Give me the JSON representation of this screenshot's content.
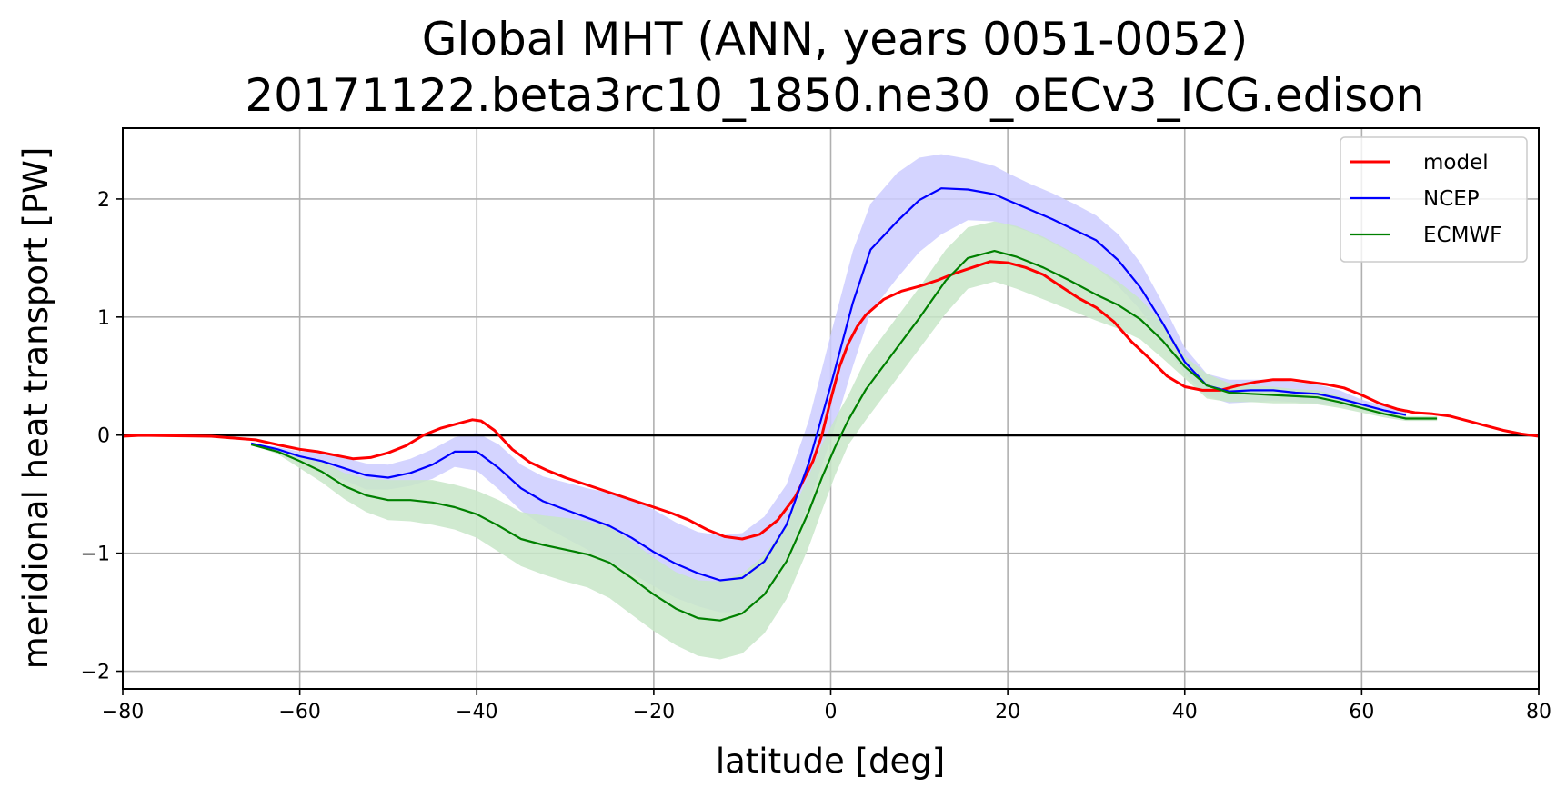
{
  "chart_data": {
    "type": "line",
    "title": "Global MHT (ANN, years 0051-0052)",
    "subtitle": "20171122.beta3rc10_1850.ne30_oECv3_ICG.edison",
    "xlabel": "latitude [deg]",
    "ylabel": "meridional heat transport [PW]",
    "xlim": [
      -80,
      80
    ],
    "ylim": [
      -2.15,
      2.6
    ],
    "xticks": [
      -80,
      -60,
      -40,
      -20,
      0,
      20,
      40,
      60,
      80
    ],
    "yticks": [
      -2,
      -1,
      0,
      1,
      2
    ],
    "grid": true,
    "legend_position": "top-right",
    "zero_line": true,
    "series": [
      {
        "name": "model",
        "color": "#ff0000",
        "x": [
          -80,
          -78,
          -75,
          -70,
          -65,
          -62,
          -60,
          -58,
          -56,
          -54,
          -52,
          -50,
          -48,
          -46,
          -44,
          -42,
          -40.5,
          -39.5,
          -38,
          -36,
          -34,
          -32,
          -30,
          -28,
          -26,
          -24,
          -22,
          -20,
          -18,
          -16,
          -14,
          -12,
          -10,
          -8,
          -6,
          -4,
          -2,
          -1,
          0,
          1,
          2,
          3,
          4,
          6,
          8,
          10,
          12,
          14,
          16,
          18,
          20,
          22,
          24,
          26,
          28,
          30,
          32,
          34,
          36,
          38,
          40,
          42,
          44,
          46,
          48,
          50,
          52,
          54,
          56,
          58,
          60,
          62,
          64,
          66,
          68,
          70,
          72,
          74,
          76,
          78,
          80
        ],
        "y": [
          -0.01,
          -0.002,
          -0.005,
          -0.01,
          -0.04,
          -0.09,
          -0.12,
          -0.14,
          -0.17,
          -0.2,
          -0.19,
          -0.15,
          -0.09,
          0.0,
          0.06,
          0.1,
          0.13,
          0.12,
          0.04,
          -0.12,
          -0.23,
          -0.3,
          -0.36,
          -0.41,
          -0.46,
          -0.51,
          -0.56,
          -0.61,
          -0.66,
          -0.72,
          -0.8,
          -0.86,
          -0.88,
          -0.84,
          -0.72,
          -0.52,
          -0.22,
          0.0,
          0.3,
          0.58,
          0.78,
          0.92,
          1.02,
          1.15,
          1.22,
          1.26,
          1.31,
          1.37,
          1.42,
          1.47,
          1.46,
          1.42,
          1.36,
          1.26,
          1.16,
          1.08,
          0.96,
          0.79,
          0.65,
          0.5,
          0.41,
          0.38,
          0.38,
          0.42,
          0.45,
          0.47,
          0.47,
          0.45,
          0.43,
          0.4,
          0.34,
          0.27,
          0.22,
          0.19,
          0.18,
          0.16,
          0.12,
          0.08,
          0.04,
          0.01,
          -0.01
        ]
      },
      {
        "name": "NCEP",
        "color": "#0000ff",
        "band_color": "#ccccff",
        "x": [
          -65.5,
          -62.5,
          -60,
          -57.5,
          -55,
          -52.5,
          -50,
          -47.5,
          -45,
          -42.5,
          -40,
          -37.5,
          -35,
          -32.5,
          -30,
          -27.5,
          -25,
          -22.5,
          -20,
          -17.5,
          -15,
          -12.5,
          -10,
          -7.5,
          -5,
          -2.5,
          0,
          2.5,
          4.5,
          7.5,
          10,
          12.5,
          15.5,
          18.5,
          20,
          22.5,
          25,
          27.5,
          30,
          32.5,
          35,
          37.5,
          40,
          42.5,
          45,
          47.5,
          50,
          52.5,
          55,
          57.5,
          60,
          62.5,
          65
        ],
        "y": [
          -0.07,
          -0.12,
          -0.18,
          -0.22,
          -0.28,
          -0.34,
          -0.36,
          -0.32,
          -0.25,
          -0.14,
          -0.14,
          -0.28,
          -0.45,
          -0.56,
          -0.63,
          -0.7,
          -0.77,
          -0.87,
          -0.99,
          -1.09,
          -1.17,
          -1.23,
          -1.21,
          -1.07,
          -0.76,
          -0.24,
          0.42,
          1.12,
          1.57,
          1.81,
          1.99,
          2.09,
          2.08,
          2.04,
          1.99,
          1.91,
          1.83,
          1.74,
          1.65,
          1.48,
          1.25,
          0.95,
          0.62,
          0.42,
          0.37,
          0.38,
          0.38,
          0.36,
          0.35,
          0.31,
          0.26,
          0.21,
          0.17
        ],
        "band_lower": [
          -0.07,
          -0.14,
          -0.22,
          -0.32,
          -0.38,
          -0.46,
          -0.46,
          -0.43,
          -0.37,
          -0.27,
          -0.3,
          -0.46,
          -0.64,
          -0.77,
          -0.87,
          -0.97,
          -1.07,
          -1.17,
          -1.28,
          -1.38,
          -1.45,
          -1.5,
          -1.5,
          -1.36,
          -1.04,
          -0.58,
          -0.04,
          0.58,
          1.04,
          1.33,
          1.55,
          1.7,
          1.82,
          1.81,
          1.78,
          1.72,
          1.63,
          1.53,
          1.42,
          1.26,
          1.06,
          0.79,
          0.52,
          0.33,
          0.27,
          0.28,
          0.29,
          0.28,
          0.27,
          0.25,
          0.21,
          0.17,
          0.13
        ],
        "band_upper": [
          -0.07,
          -0.1,
          -0.14,
          -0.14,
          -0.19,
          -0.24,
          -0.25,
          -0.2,
          -0.12,
          -0.02,
          0.02,
          -0.08,
          -0.25,
          -0.35,
          -0.4,
          -0.45,
          -0.49,
          -0.55,
          -0.63,
          -0.74,
          -0.82,
          -0.85,
          -0.83,
          -0.69,
          -0.42,
          0.12,
          0.85,
          1.56,
          1.96,
          2.22,
          2.35,
          2.38,
          2.34,
          2.28,
          2.22,
          2.13,
          2.05,
          1.96,
          1.86,
          1.7,
          1.46,
          1.12,
          0.74,
          0.52,
          0.47,
          0.47,
          0.47,
          0.45,
          0.43,
          0.38,
          0.3,
          0.25,
          0.21
        ]
      },
      {
        "name": "ECMWF",
        "color": "#008000",
        "band_color": "#c8e6c8",
        "x": [
          -65.5,
          -62.5,
          -60,
          -57.5,
          -55,
          -52.5,
          -50,
          -47.5,
          -45,
          -42.5,
          -40,
          -37.5,
          -35,
          -32.5,
          -30,
          -27.5,
          -25,
          -22.5,
          -20,
          -17.5,
          -15,
          -12.5,
          -10,
          -7.5,
          -5,
          -2.5,
          -1,
          0.5,
          2,
          4,
          7,
          10,
          13,
          15.5,
          18.5,
          21,
          24,
          27,
          30,
          32.5,
          35,
          37.5,
          40,
          42.5,
          45,
          47.5,
          50,
          52.5,
          55,
          57.5,
          60,
          62.5,
          65,
          68.5
        ],
        "y": [
          -0.08,
          -0.14,
          -0.22,
          -0.31,
          -0.43,
          -0.51,
          -0.55,
          -0.55,
          -0.57,
          -0.61,
          -0.67,
          -0.77,
          -0.88,
          -0.93,
          -0.97,
          -1.01,
          -1.08,
          -1.21,
          -1.35,
          -1.47,
          -1.55,
          -1.57,
          -1.51,
          -1.35,
          -1.07,
          -0.65,
          -0.36,
          -0.1,
          0.13,
          0.39,
          0.69,
          0.99,
          1.31,
          1.5,
          1.56,
          1.51,
          1.42,
          1.31,
          1.19,
          1.1,
          0.98,
          0.8,
          0.58,
          0.42,
          0.36,
          0.35,
          0.34,
          0.33,
          0.32,
          0.28,
          0.23,
          0.18,
          0.14,
          0.14
        ],
        "band_lower": [
          -0.08,
          -0.16,
          -0.28,
          -0.4,
          -0.54,
          -0.65,
          -0.72,
          -0.73,
          -0.76,
          -0.8,
          -0.87,
          -0.99,
          -1.11,
          -1.18,
          -1.24,
          -1.29,
          -1.38,
          -1.52,
          -1.66,
          -1.78,
          -1.87,
          -1.9,
          -1.85,
          -1.68,
          -1.39,
          -0.95,
          -0.64,
          -0.34,
          -0.08,
          0.13,
          0.43,
          0.73,
          1.03,
          1.24,
          1.3,
          1.24,
          1.15,
          1.06,
          0.97,
          0.9,
          0.81,
          0.65,
          0.48,
          0.31,
          0.28,
          0.28,
          0.27,
          0.27,
          0.26,
          0.23,
          0.19,
          0.15,
          0.12,
          0.12
        ],
        "band_upper": [
          -0.08,
          -0.12,
          -0.17,
          -0.22,
          -0.32,
          -0.37,
          -0.38,
          -0.38,
          -0.38,
          -0.42,
          -0.47,
          -0.55,
          -0.65,
          -0.68,
          -0.7,
          -0.73,
          -0.78,
          -0.9,
          -1.04,
          -1.16,
          -1.23,
          -1.24,
          -1.17,
          -1.02,
          -0.75,
          -0.35,
          -0.08,
          0.14,
          0.34,
          0.65,
          0.95,
          1.25,
          1.57,
          1.76,
          1.81,
          1.77,
          1.68,
          1.56,
          1.42,
          1.3,
          1.15,
          0.95,
          0.67,
          0.52,
          0.44,
          0.42,
          0.41,
          0.39,
          0.38,
          0.33,
          0.27,
          0.21,
          0.16,
          0.16
        ]
      }
    ]
  }
}
